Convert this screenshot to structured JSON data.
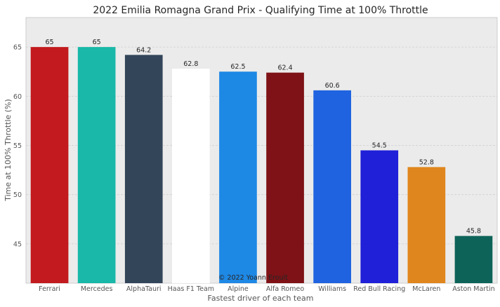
{
  "chart_data": {
    "type": "bar",
    "title": "2022 Emilia Romagna Grand Prix - Qualifying Time at 100% Throttle",
    "xlabel": "Fastest driver of each team",
    "ylabel": "Time at 100% Throttle (%)",
    "categories": [
      "Ferrari",
      "Mercedes",
      "AlphaTauri",
      "Haas F1 Team",
      "Alpine",
      "Alfa Romeo",
      "Williams",
      "Red Bull Racing",
      "McLaren",
      "Aston Martin"
    ],
    "values": [
      65,
      65,
      64.2,
      62.8,
      62.5,
      62.4,
      60.6,
      54.5,
      52.8,
      45.8
    ],
    "value_labels": [
      "65",
      "65",
      "64.2",
      "62.8",
      "62.5",
      "62.4",
      "60.6",
      "54.5",
      "52.8",
      "45.8"
    ],
    "colors": [
      "#c21a1e",
      "#19b8a8",
      "#324559",
      "#ffffff",
      "#1e88e5",
      "#7e1216",
      "#1f63e0",
      "#2020d8",
      "#e0861e",
      "#0e6359"
    ],
    "ylim": [
      41,
      68
    ],
    "yticks": [
      45,
      50,
      55,
      60,
      65
    ],
    "ytick_labels": [
      "45",
      "50",
      "55",
      "60",
      "65"
    ],
    "grid": true,
    "annotation": "© 2022 Yoann Eroult"
  }
}
